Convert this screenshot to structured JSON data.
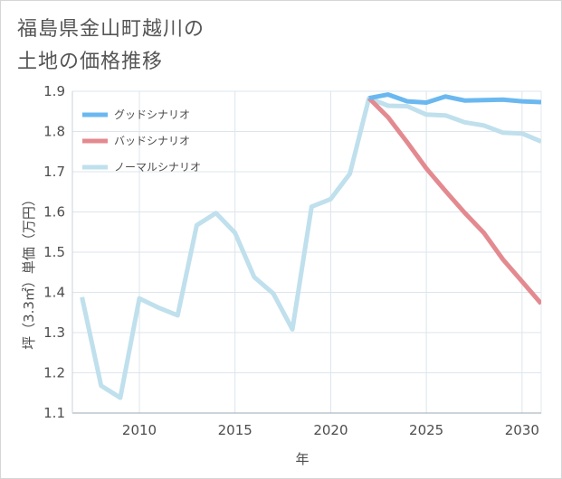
{
  "title_line1": "福島県金山町越川の",
  "title_line2": "土地の価格推移",
  "chart_data": {
    "type": "line",
    "title": "福島県金山町越川の土地の価格推移",
    "xlabel": "年",
    "ylabel": "坪（3.3㎡）単価（万円）",
    "xlim": [
      2006.5,
      2031
    ],
    "ylim": [
      1.1,
      1.9
    ],
    "x_ticks": [
      2010,
      2015,
      2020,
      2025,
      2030
    ],
    "y_ticks": [
      1.1,
      1.2,
      1.3,
      1.4,
      1.5,
      1.6,
      1.7,
      1.8,
      1.9
    ],
    "grid": true,
    "legend_position": "top-left",
    "series": [
      {
        "name": "グッドシナリオ",
        "color": "#6bb8f0",
        "x": [
          2022,
          2023,
          2024,
          2025,
          2026,
          2027,
          2028,
          2029,
          2030,
          2031
        ],
        "values": [
          1.883,
          1.892,
          1.875,
          1.872,
          1.887,
          1.877,
          1.878,
          1.879,
          1.875,
          1.873
        ]
      },
      {
        "name": "バッドシナリオ",
        "color": "#e38a90",
        "x": [
          2022,
          2023,
          2024,
          2025,
          2026,
          2027,
          2028,
          2029,
          2030,
          2031
        ],
        "values": [
          1.883,
          1.835,
          1.773,
          1.708,
          1.652,
          1.598,
          1.548,
          1.482,
          1.427,
          1.372
        ]
      },
      {
        "name": "ノーマルシナリオ",
        "color": "#bfe0ec",
        "x": [
          2007,
          2008,
          2009,
          2010,
          2011,
          2012,
          2013,
          2014,
          2015,
          2016,
          2017,
          2018,
          2019,
          2020,
          2021,
          2022,
          2023,
          2024,
          2025,
          2026,
          2027,
          2028,
          2029,
          2030,
          2031
        ],
        "values": [
          1.388,
          1.168,
          1.138,
          1.385,
          1.362,
          1.343,
          1.567,
          1.597,
          1.548,
          1.438,
          1.397,
          1.308,
          1.613,
          1.632,
          1.695,
          1.883,
          1.864,
          1.863,
          1.842,
          1.84,
          1.823,
          1.815,
          1.797,
          1.795,
          1.775
        ]
      }
    ]
  }
}
